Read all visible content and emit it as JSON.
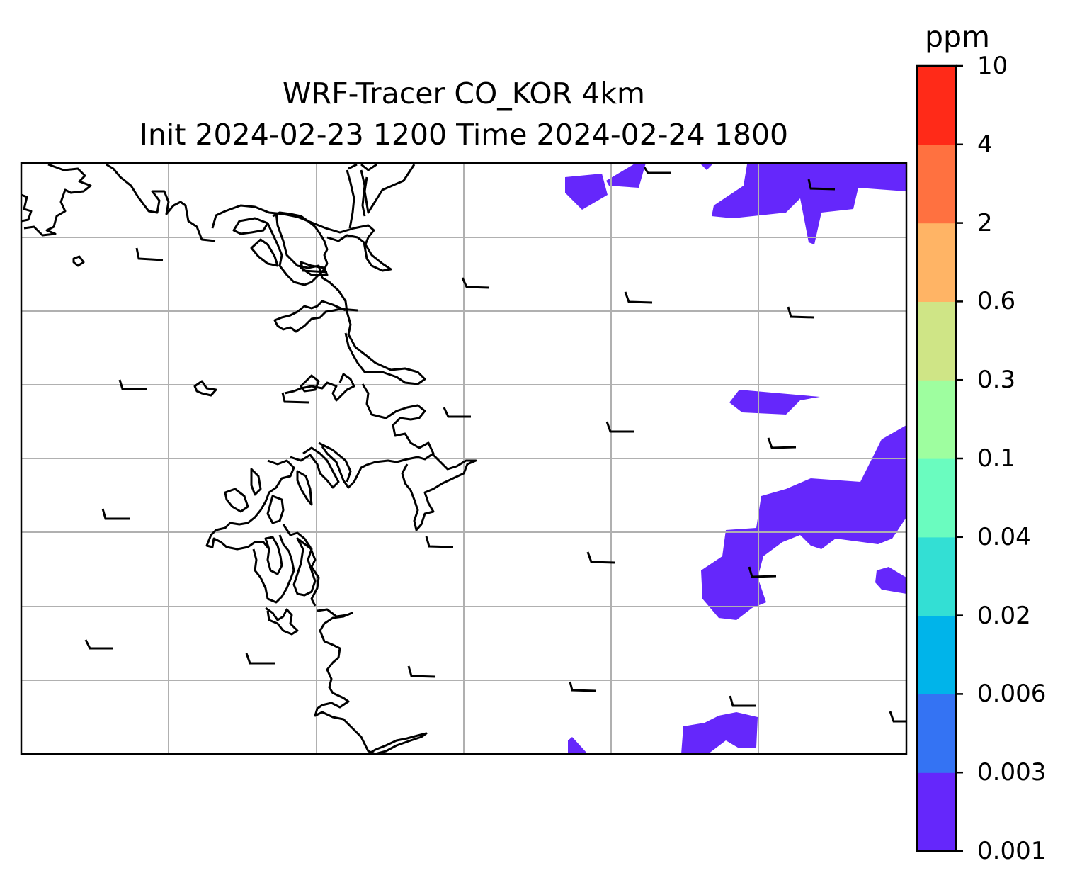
{
  "title_line1": "WRF-Tracer CO_KOR 4km",
  "title_line2": "Init 2024-02-23 1200 Time 2024-02-24 1800",
  "colorbar": {
    "label": "ppm",
    "ticks": [
      "0.001",
      "0.003",
      "0.006",
      "0.02",
      "0.04",
      "0.1",
      "0.3",
      "0.6",
      "2",
      "4",
      "10"
    ],
    "colors": [
      "#6527fb",
      "#3473f3",
      "#00b4ea",
      "#33dfd4",
      "#6afcbf",
      "#9efe9f",
      "#cfe586",
      "#ffb465",
      "#ff7140",
      "#ff2a18"
    ]
  },
  "map": {
    "land_fill": "#ffffff",
    "coastline_color": "#000000",
    "gridline_color": "#b0b0b0",
    "tracer_shading_color": "#6527fb",
    "wind_barbs": "light westerly winds, short-barb flags across domain"
  }
}
